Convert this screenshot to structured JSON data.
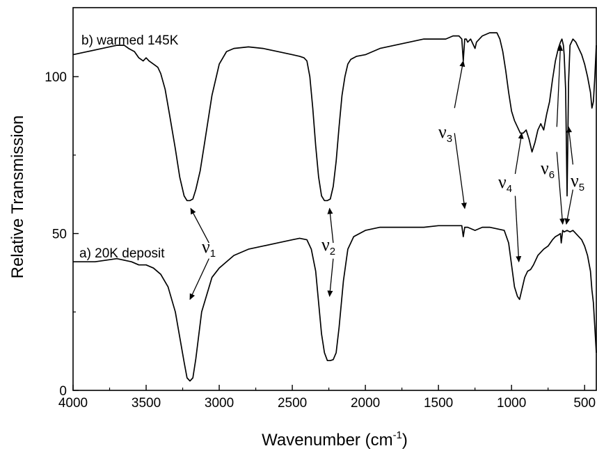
{
  "chart_data": {
    "type": "line",
    "xlabel": "Wavenumber (cm",
    "xlabel_sup": "-1",
    "xlabel_close": ")",
    "ylabel": "Relative Transmission",
    "xlim": [
      4000,
      420
    ],
    "ylim": [
      0,
      122
    ],
    "x_reversed": true,
    "grid": false,
    "legend": "none",
    "x_ticks": [
      4000,
      3500,
      3000,
      2500,
      2000,
      1500,
      1000,
      500
    ],
    "y_ticks": [
      0,
      50,
      100
    ],
    "series": [
      {
        "name": "a) 20K deposit",
        "x": [
          4000,
          3850,
          3700,
          3600,
          3550,
          3500,
          3450,
          3400,
          3350,
          3300,
          3270,
          3240,
          3220,
          3200,
          3180,
          3160,
          3120,
          3050,
          3000,
          2900,
          2800,
          2700,
          2600,
          2500,
          2450,
          2400,
          2370,
          2340,
          2320,
          2300,
          2280,
          2260,
          2240,
          2220,
          2200,
          2180,
          2150,
          2120,
          2080,
          2000,
          1900,
          1800,
          1700,
          1600,
          1500,
          1400,
          1340,
          1330,
          1320,
          1310,
          1300,
          1250,
          1200,
          1150,
          1100,
          1050,
          1020,
          1000,
          980,
          960,
          945,
          930,
          910,
          890,
          870,
          850,
          820,
          800,
          780,
          750,
          720,
          700,
          680,
          665,
          660,
          650,
          640,
          620,
          600,
          580,
          560,
          540,
          520,
          500,
          480,
          460,
          450,
          440,
          430,
          420
        ],
        "y": [
          41,
          41,
          42,
          41,
          40,
          40,
          39,
          37,
          33,
          25,
          17,
          9,
          4,
          3,
          4,
          10,
          25,
          36,
          39,
          43,
          45,
          46,
          47,
          48,
          48.5,
          48,
          45,
          38,
          28,
          18,
          12,
          9.5,
          9.5,
          9.8,
          12,
          20,
          35,
          45,
          49,
          51,
          52,
          52,
          52,
          52,
          52.5,
          52.5,
          52.5,
          49,
          52,
          52,
          52,
          51,
          52,
          52,
          51.5,
          51,
          47,
          40,
          33,
          30,
          29,
          32,
          36,
          38,
          38.5,
          40,
          43,
          44,
          45,
          46,
          48,
          49,
          49.5,
          50,
          47,
          51,
          50.5,
          51,
          50.5,
          51,
          50,
          49,
          48,
          46,
          43,
          38,
          32,
          28,
          20,
          12
        ]
      },
      {
        "name": "b) warmed 145K",
        "x": [
          4000,
          3900,
          3800,
          3700,
          3650,
          3620,
          3580,
          3550,
          3520,
          3500,
          3480,
          3450,
          3420,
          3400,
          3370,
          3340,
          3300,
          3270,
          3240,
          3220,
          3200,
          3180,
          3160,
          3130,
          3100,
          3070,
          3050,
          3020,
          3000,
          2950,
          2900,
          2800,
          2700,
          2600,
          2500,
          2450,
          2420,
          2400,
          2380,
          2360,
          2340,
          2320,
          2300,
          2280,
          2260,
          2240,
          2220,
          2200,
          2180,
          2160,
          2140,
          2120,
          2100,
          2060,
          2000,
          1900,
          1800,
          1700,
          1600,
          1500,
          1450,
          1400,
          1360,
          1340,
          1330,
          1320,
          1310,
          1300,
          1280,
          1260,
          1250,
          1240,
          1220,
          1200,
          1150,
          1120,
          1100,
          1080,
          1060,
          1040,
          1020,
          1000,
          980,
          960,
          940,
          920,
          900,
          880,
          860,
          840,
          820,
          800,
          780,
          760,
          740,
          720,
          700,
          680,
          665,
          655,
          645,
          640,
          630,
          625,
          620,
          615,
          610,
          600,
          580,
          560,
          540,
          520,
          500,
          480,
          460,
          450,
          440,
          430,
          420
        ],
        "y": [
          107,
          108,
          109,
          110,
          110,
          109,
          108,
          106,
          105,
          106,
          105,
          104,
          103,
          101,
          96,
          88,
          77,
          68,
          62,
          60.5,
          60.5,
          61,
          64,
          70,
          79,
          88,
          94,
          100,
          104,
          108,
          109,
          109.5,
          109,
          108,
          107,
          106.5,
          106,
          105,
          100,
          90,
          78,
          68,
          62,
          60.5,
          60.5,
          61,
          65,
          73,
          84,
          94,
          100,
          104,
          105.5,
          106.5,
          107,
          109,
          110,
          111,
          112,
          112,
          112,
          113,
          113,
          112,
          105,
          112,
          112,
          111,
          112,
          110,
          109,
          111,
          112,
          113,
          114,
          114,
          114,
          112,
          108,
          102,
          95,
          89,
          86,
          84,
          82,
          82,
          83,
          80,
          76,
          79,
          83,
          85,
          83,
          88,
          92,
          99,
          105,
          109,
          111,
          112,
          110,
          107,
          96,
          80,
          62,
          78,
          98,
          110,
          112,
          111,
          109,
          107,
          104,
          100,
          95,
          90,
          92,
          100,
          110
        ]
      }
    ],
    "annotations": [
      {
        "base": "ν",
        "sub": "1"
      },
      {
        "base": "ν",
        "sub": "2"
      },
      {
        "base": "ν",
        "sub": "3"
      },
      {
        "base": "ν",
        "sub": "4"
      },
      {
        "base": "ν",
        "sub": "6"
      },
      {
        "base": "ν",
        "sub": "5"
      }
    ],
    "arrows": [
      {
        "from": [
          3070,
          47
        ],
        "to": [
          3195,
          58
        ]
      },
      {
        "from": [
          3070,
          42
        ],
        "to": [
          3200,
          29
        ]
      },
      {
        "from": [
          2220,
          47
        ],
        "to": [
          2245,
          58
        ]
      },
      {
        "from": [
          2220,
          42
        ],
        "to": [
          2245,
          30
        ]
      },
      {
        "from": [
          1390,
          90
        ],
        "to": [
          1330,
          105
        ]
      },
      {
        "from": [
          1390,
          82
        ],
        "to": [
          1320,
          58
        ]
      },
      {
        "from": [
          975,
          69
        ],
        "to": [
          930,
          82
        ]
      },
      {
        "from": [
          975,
          62
        ],
        "to": [
          950,
          41
        ]
      },
      {
        "from": [
          690,
          84
        ],
        "to": [
          665,
          110
        ]
      },
      {
        "from": [
          690,
          76
        ],
        "to": [
          650,
          53
        ]
      },
      {
        "from": [
          580,
          72
        ],
        "to": [
          610,
          84
        ]
      },
      {
        "from": [
          580,
          64
        ],
        "to": [
          625,
          53
        ]
      }
    ],
    "colors": {
      "line": "#000000",
      "axis": "#000000",
      "background": "#ffffff"
    }
  }
}
